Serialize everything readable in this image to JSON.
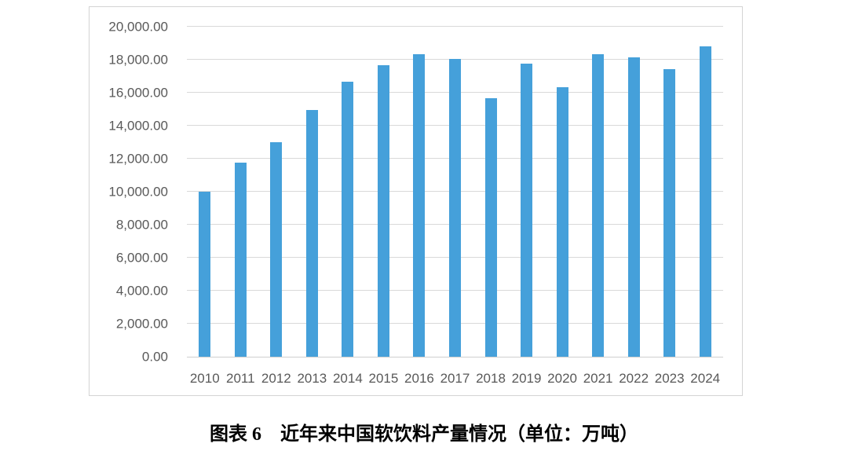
{
  "caption": "图表 6　近年来中国软饮料产量情况（单位：万吨）",
  "chart_data": {
    "type": "bar",
    "title": "",
    "caption": "图表 6　近年来中国软饮料产量情况（单位：万吨）",
    "unit": "万吨",
    "categories": [
      "2010",
      "2011",
      "2012",
      "2013",
      "2014",
      "2015",
      "2016",
      "2017",
      "2018",
      "2019",
      "2020",
      "2021",
      "2022",
      "2023",
      "2024"
    ],
    "values": [
      9980,
      11760,
      13020,
      14930,
      16670,
      17660,
      18340,
      18050,
      15680,
      17760,
      16350,
      18330,
      18140,
      17450,
      18790
    ],
    "ylim": [
      0,
      20000
    ],
    "y_tick_step": 2000,
    "y_tick_values": [
      0,
      2000,
      4000,
      6000,
      8000,
      10000,
      12000,
      14000,
      16000,
      18000,
      20000
    ],
    "y_tick_labels": [
      "0.00",
      "2,000.00",
      "4,000.00",
      "6,000.00",
      "8,000.00",
      "10,000.00",
      "12,000.00",
      "14,000.00",
      "16,000.00",
      "18,000.00",
      "20,000.00"
    ],
    "xlabel": "",
    "ylabel": "",
    "grid": true,
    "legend": false,
    "colors": {
      "bar": "#45a0da",
      "gridline": "#d9d9d9",
      "axis_line": "#cfcfcf",
      "tick_text": "#595959",
      "frame_border": "#d4d4d4",
      "background": "#ffffff"
    }
  }
}
